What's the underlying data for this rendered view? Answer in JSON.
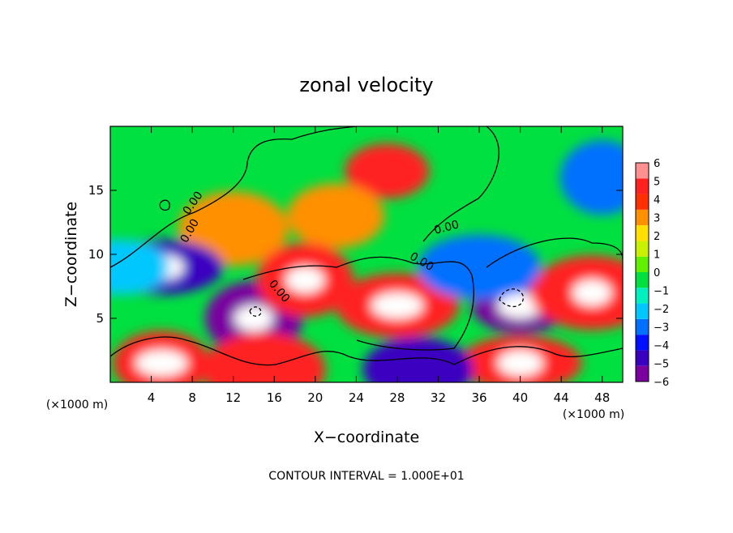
{
  "chart_data": {
    "type": "heatmap",
    "title": "zonal velocity",
    "xlabel": "X−coordinate",
    "ylabel": "Z−coordinate",
    "x_unit": "(×1000 m)",
    "y_unit": "(×1000 m)",
    "xlim": [
      0,
      50
    ],
    "ylim": [
      0,
      20
    ],
    "x_ticks": [
      "4",
      "8",
      "12",
      "16",
      "20",
      "24",
      "28",
      "32",
      "36",
      "40",
      "44",
      "48"
    ],
    "y_ticks": [
      "5",
      "10",
      "15"
    ],
    "colorbar": {
      "min": -6,
      "max": 6,
      "ticks": [
        "6",
        "5",
        "4",
        "3",
        "2",
        "1",
        "0",
        "−1",
        "−2",
        "−3",
        "−4",
        "−5",
        "−6"
      ],
      "colors": [
        "#7a00a0",
        "#3a00c0",
        "#0010ff",
        "#0070ff",
        "#00c8ff",
        "#00f0c0",
        "#00e040",
        "#60f000",
        "#c8f000",
        "#ffe000",
        "#ff9000",
        "#ff3000",
        "#ff2020",
        "#ff9090"
      ]
    },
    "contour_labels": [
      "0.00",
      "0.00",
      "0.00",
      "0.00",
      "0.00"
    ],
    "footer": "CONTOUR INTERVAL = 1.000E+01",
    "field_features": [
      {
        "x": 27,
        "z": 16.5,
        "value": 5
      },
      {
        "x": 22,
        "z": 13,
        "value": 3
      },
      {
        "x": 12,
        "z": 12,
        "value": 3
      },
      {
        "x": 5,
        "z": 9,
        "value": -5
      },
      {
        "x": 5,
        "z": 9,
        "value": -7
      },
      {
        "x": 14,
        "z": 5,
        "value": -6
      },
      {
        "x": 14,
        "z": 5,
        "value": -8
      },
      {
        "x": 28,
        "z": 6,
        "value": 5
      },
      {
        "x": 28,
        "z": 6,
        "value": 7
      },
      {
        "x": 40,
        "z": 6,
        "value": -6
      },
      {
        "x": 40,
        "z": 6,
        "value": -8
      },
      {
        "x": 47,
        "z": 7,
        "value": 5
      },
      {
        "x": 47,
        "z": 7,
        "value": 7
      },
      {
        "x": 5,
        "z": 1.5,
        "value": 5
      },
      {
        "x": 5,
        "z": 1.5,
        "value": 7
      },
      {
        "x": 40,
        "z": 1.5,
        "value": 5
      },
      {
        "x": 40,
        "z": 1.5,
        "value": 7
      },
      {
        "x": 19,
        "z": 8,
        "value": 5
      },
      {
        "x": 19,
        "z": 8,
        "value": 7
      },
      {
        "x": 36,
        "z": 9,
        "value": -3
      },
      {
        "x": 48,
        "z": 16,
        "value": -3
      },
      {
        "x": 1,
        "z": 9,
        "value": -2
      },
      {
        "x": 30,
        "z": 1,
        "value": -5
      },
      {
        "x": 15,
        "z": 1,
        "value": 5
      }
    ]
  }
}
